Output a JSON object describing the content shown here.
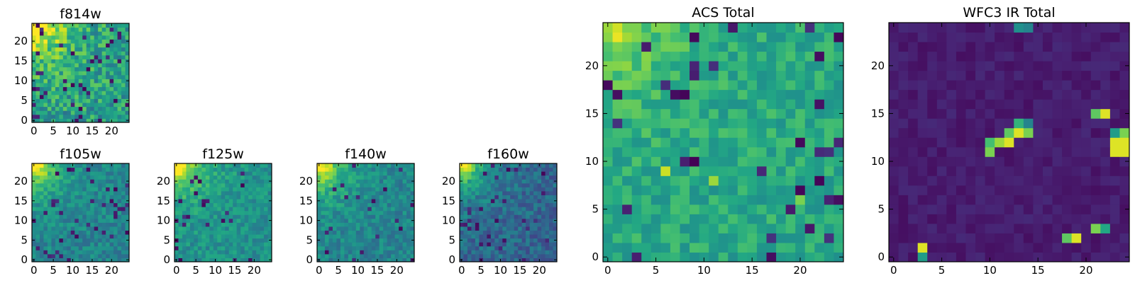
{
  "chart_data": [
    {
      "type": "heatmap",
      "title": "f814w",
      "grid_size": 25,
      "xticks": [
        0,
        5,
        10,
        15,
        20
      ],
      "yticks": [
        0,
        5,
        10,
        15,
        20
      ],
      "colormap": "viridis",
      "pattern": {
        "seed": 11,
        "corner_strength": 0.75,
        "corner_decay": 6,
        "base": 0.55,
        "noise": 0.38,
        "dark_spots": 0.06,
        "hot_spots": []
      }
    },
    {
      "type": "heatmap",
      "title": "f105w",
      "grid_size": 25,
      "xticks": [
        0,
        5,
        10,
        15,
        20
      ],
      "yticks": [
        0,
        5,
        10,
        15,
        20
      ],
      "colormap": "viridis",
      "pattern": {
        "seed": 23,
        "corner_strength": 0.7,
        "corner_decay": 5,
        "base": 0.45,
        "noise": 0.22,
        "dark_spots": 0.05,
        "hot_spots": []
      }
    },
    {
      "type": "heatmap",
      "title": "f125w",
      "grid_size": 25,
      "xticks": [
        0,
        5,
        10,
        15,
        20
      ],
      "yticks": [
        0,
        5,
        10,
        15,
        20
      ],
      "colormap": "viridis",
      "pattern": {
        "seed": 37,
        "corner_strength": 0.7,
        "corner_decay": 5,
        "base": 0.5,
        "noise": 0.22,
        "dark_spots": 0.04,
        "hot_spots": []
      }
    },
    {
      "type": "heatmap",
      "title": "f140w",
      "grid_size": 25,
      "xticks": [
        0,
        5,
        10,
        15,
        20
      ],
      "yticks": [
        0,
        5,
        10,
        15,
        20
      ],
      "colormap": "viridis",
      "pattern": {
        "seed": 41,
        "corner_strength": 0.7,
        "corner_decay": 5,
        "base": 0.45,
        "noise": 0.22,
        "dark_spots": 0.04,
        "hot_spots": []
      }
    },
    {
      "type": "heatmap",
      "title": "f160w",
      "grid_size": 25,
      "xticks": [
        0,
        5,
        10,
        15,
        20
      ],
      "yticks": [
        0,
        5,
        10,
        15,
        20
      ],
      "colormap": "viridis",
      "pattern": {
        "seed": 53,
        "corner_strength": 0.72,
        "corner_decay": 5,
        "base": 0.33,
        "noise": 0.24,
        "dark_spots": 0.07,
        "hot_spots": []
      }
    },
    {
      "type": "heatmap",
      "title": "ACS Total",
      "grid_size": 25,
      "xticks": [
        0,
        5,
        10,
        15,
        20
      ],
      "yticks": [
        0,
        5,
        10,
        15,
        20
      ],
      "colormap": "viridis",
      "pattern": {
        "seed": 67,
        "corner_strength": 0.35,
        "corner_decay": 5,
        "base": 0.6,
        "noise": 0.22,
        "dark_spots": 0.05,
        "hot_spots": [
          [
            6,
            9,
            0.92
          ],
          [
            11,
            8,
            0.85
          ],
          [
            20,
            6,
            0.8
          ]
        ]
      }
    },
    {
      "type": "heatmap",
      "title": "WFC3 IR Total",
      "grid_size": 25,
      "xticks": [
        0,
        5,
        10,
        15,
        20
      ],
      "yticks": [
        0,
        5,
        10,
        15,
        20
      ],
      "colormap": "viridis",
      "pattern": {
        "seed": 79,
        "corner_strength": 0.0,
        "corner_decay": 5,
        "base": 0.08,
        "noise": 0.08,
        "dark_spots": 0.0,
        "hot_spots": [
          [
            3,
            1,
            0.95
          ],
          [
            3,
            0,
            0.55
          ],
          [
            10,
            11,
            0.8
          ],
          [
            10,
            12,
            0.7
          ],
          [
            11,
            12,
            0.85
          ],
          [
            12,
            12,
            0.95
          ],
          [
            13,
            13,
            0.95
          ],
          [
            12,
            13,
            0.75
          ],
          [
            14,
            13,
            0.8
          ],
          [
            13,
            14,
            0.65
          ],
          [
            14,
            14,
            0.45
          ],
          [
            18,
            2,
            0.75
          ],
          [
            19,
            2,
            0.95
          ],
          [
            21,
            3,
            0.8
          ],
          [
            22,
            3,
            0.6
          ],
          [
            21,
            15,
            0.75
          ],
          [
            22,
            15,
            0.95
          ],
          [
            23,
            12,
            0.95
          ],
          [
            24,
            12,
            0.95
          ],
          [
            23,
            11,
            0.95
          ],
          [
            24,
            11,
            0.95
          ],
          [
            24,
            13,
            0.8
          ],
          [
            23,
            13,
            0.55
          ],
          [
            13,
            24,
            0.5
          ],
          [
            14,
            24,
            0.45
          ]
        ]
      }
    }
  ]
}
